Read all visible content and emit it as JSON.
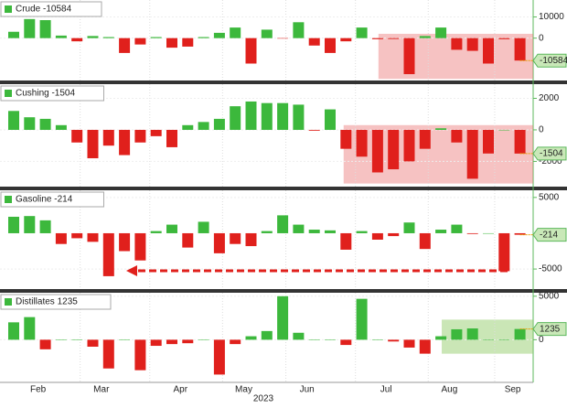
{
  "chart_data": [
    {
      "type": "bar",
      "series": [
        {
          "name": "Crude -10584",
          "values": [
            3000,
            9000,
            8500,
            1200,
            -1500,
            1000,
            500,
            -7000,
            -3000,
            500,
            -4500,
            -4000,
            500,
            2500,
            5000,
            -12000,
            4000,
            -200,
            7500,
            -3500,
            -7000,
            -1500,
            5000,
            -500,
            -400,
            -17000,
            1000,
            5000,
            -5500,
            -6000,
            -12000,
            -500,
            -10584
          ]
        }
      ],
      "ylim": [
        -20000,
        18000
      ],
      "yticks": [
        10000,
        0
      ],
      "positive_color": "#3cb83c",
      "negative_color": "#e0201c"
    },
    {
      "type": "bar",
      "series": [
        {
          "name": "Cushing -1504",
          "values": [
            1200,
            800,
            700,
            300,
            -800,
            -1800,
            -1000,
            -1600,
            -800,
            -400,
            -1100,
            300,
            500,
            700,
            1500,
            1800,
            1700,
            1700,
            1600,
            -50,
            1300,
            -1200,
            -1700,
            -2700,
            -2500,
            -2000,
            -1200,
            100,
            -800,
            -3100,
            -1500,
            0,
            -1504
          ]
        }
      ],
      "ylim": [
        -3600,
        2900
      ],
      "yticks": [
        2000,
        0,
        -2000
      ],
      "positive_color": "#3cb83c",
      "negative_color": "#e0201c"
    },
    {
      "type": "bar",
      "series": [
        {
          "name": "Gasoline -214",
          "values": [
            2300,
            2400,
            1800,
            -1500,
            -700,
            -1200,
            -6000,
            -2500,
            -3800,
            300,
            1200,
            -2000,
            1600,
            -2800,
            -1500,
            -1800,
            300,
            2500,
            1200,
            500,
            400,
            -2300,
            300,
            -900,
            -400,
            1500,
            -2200,
            500,
            1200,
            -100,
            0,
            -5300,
            -214
          ]
        }
      ],
      "ylim": [
        -7800,
        6000
      ],
      "yticks": [
        5000,
        -5000
      ],
      "positive_color": "#3cb83c",
      "negative_color": "#e0201c"
    },
    {
      "type": "bar",
      "series": [
        {
          "name": "Distillates 1235",
          "values": [
            2000,
            2600,
            -1100,
            0,
            0,
            -800,
            -3300,
            0,
            -3500,
            -700,
            -500,
            -400,
            0,
            -4000,
            -500,
            400,
            1000,
            5000,
            800,
            0,
            0,
            -600,
            4700,
            0,
            -200,
            -900,
            -1600,
            400,
            1200,
            1300,
            0,
            0,
            1235
          ]
        }
      ],
      "ylim": [
        -4900,
        5400
      ],
      "yticks": [
        5000,
        0
      ],
      "positive_color": "#3cb83c",
      "negative_color": "#e0201c",
      "categories": [
        null,
        null,
        "Feb",
        null,
        null,
        null,
        "Mar",
        null,
        null,
        null,
        null,
        "Apr",
        null,
        null,
        null,
        "May",
        null,
        null,
        null,
        "Jun",
        null,
        null,
        null,
        null,
        "Jul",
        null,
        null,
        null,
        "Aug",
        null,
        null,
        null,
        "Sep"
      ],
      "x_label": "2023"
    }
  ]
}
